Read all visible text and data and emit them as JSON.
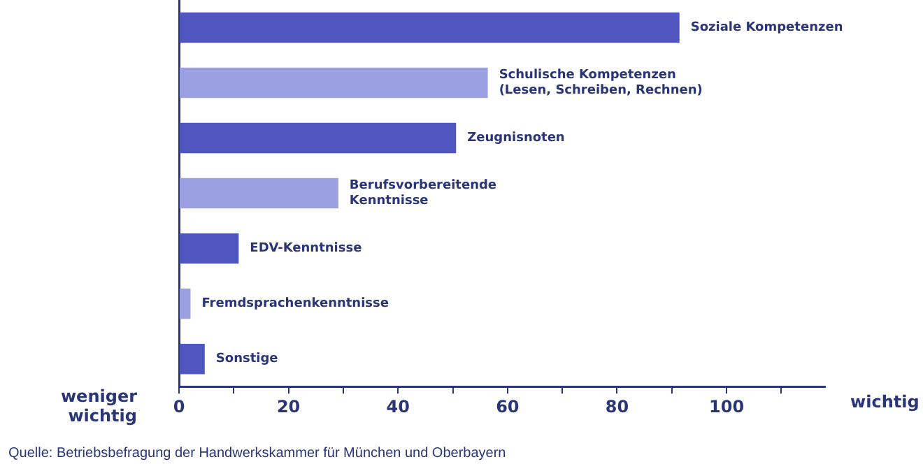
{
  "chart_data": {
    "type": "bar",
    "orientation": "horizontal",
    "categories": [
      "Soziale Kompetenzen",
      "Schulische Kompetenzen\n(Lesen, Schreiben, Rechnen)",
      "Zeugnisnoten",
      "Berufsvorbereitende\nKenntnisse",
      "EDV-Kenntnisse",
      "Fremdsprachenkenntnisse",
      "Sonstige"
    ],
    "values": [
      91.4,
      56.4,
      50.6,
      29.1,
      10.9,
      2.1,
      4.7
    ],
    "colors": [
      "#4f56bf",
      "#9aa0e2",
      "#4f56bf",
      "#9aa0e2",
      "#4f56bf",
      "#9aa0e2",
      "#4f56bf"
    ],
    "xlim": [
      0,
      118
    ],
    "xticks": [
      0,
      {
        "value": 10,
        "label": null
      },
      20,
      {
        "value": 30,
        "label": null
      },
      40,
      {
        "value": 50,
        "label": null
      },
      60,
      {
        "value": 70,
        "label": null
      },
      80,
      {
        "value": 90,
        "label": null
      },
      100,
      {
        "value": 110,
        "label": null
      }
    ],
    "grid": false,
    "annotations": [
      "weniger\nwichtig",
      "wichtig",
      "Quelle: Betriebsbefragung der Handwerkskammer für München und Oberbayern"
    ]
  }
}
